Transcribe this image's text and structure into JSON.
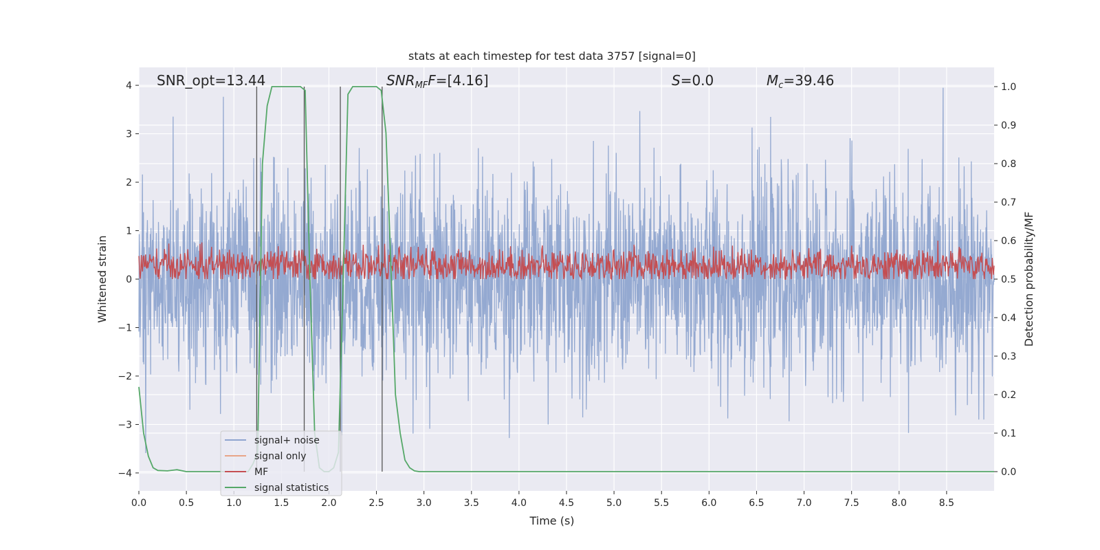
{
  "chart_data": {
    "type": "line",
    "title": "stats at each timestep for test data 3757 [signal=0]",
    "xlabel": "Time (s)",
    "ylabel": "Whitened strain",
    "y2label": "Detection probability/MF",
    "xlim": [
      0.0,
      9.0
    ],
    "ylim": [
      -4.37,
      4.37
    ],
    "y2lim": [
      -0.05,
      1.05
    ],
    "xticks": [
      "0.0",
      "0.5",
      "1.0",
      "1.5",
      "2.0",
      "2.5",
      "3.0",
      "3.5",
      "4.0",
      "4.5",
      "5.0",
      "5.5",
      "6.0",
      "6.5",
      "7.0",
      "7.5",
      "8.0",
      "8.5"
    ],
    "xtick_values": [
      0.0,
      0.5,
      1.0,
      1.5,
      2.0,
      2.5,
      3.0,
      3.5,
      4.0,
      4.5,
      5.0,
      5.5,
      6.0,
      6.5,
      7.0,
      7.5,
      8.0,
      8.5
    ],
    "yticks": [
      "−4",
      "−3",
      "−2",
      "−1",
      "0",
      "1",
      "2",
      "3",
      "4"
    ],
    "ytick_values": [
      -4,
      -3,
      -2,
      -1,
      0,
      1,
      2,
      3,
      4
    ],
    "y2ticks": [
      "0.0",
      "0.1",
      "0.2",
      "0.3",
      "0.4",
      "0.5",
      "0.6",
      "0.7",
      "0.8",
      "0.9",
      "1.0"
    ],
    "y2tick_values": [
      0.0,
      0.1,
      0.2,
      0.3,
      0.4,
      0.5,
      0.6,
      0.7,
      0.8,
      0.9,
      1.0
    ],
    "grid": true,
    "legend_position": "lower-left",
    "annotations": {
      "snr_opt": "SNR_opt=13.44",
      "snr_mf_main": "SNR",
      "snr_mf_sub": "MF",
      "snr_mf_value": "=[4.16]",
      "s_main": "S",
      "s_value": "=0.0",
      "mc_main": "M",
      "mc_sub": "c",
      "mc_value": "=39.46"
    },
    "series": [
      {
        "name": "signal+ noise",
        "color": "#8fa5cf",
        "description_values": "dense noise, amplitude about ±2.5, peaks to ±4"
      },
      {
        "name": "signal only",
        "color": "#e8a487",
        "values": []
      },
      {
        "name": "MF",
        "color": "#c44e52",
        "y_range": [
          0.5,
          0.6
        ]
      },
      {
        "name": "signal statistics",
        "color": "#55a868",
        "x": [
          0.0,
          0.05,
          0.1,
          0.15,
          0.2,
          0.3,
          0.4,
          0.5,
          0.6,
          0.8,
          1.0,
          1.15,
          1.2,
          1.25,
          1.3,
          1.35,
          1.4,
          1.45,
          1.55,
          1.65,
          1.7,
          1.75,
          1.8,
          1.85,
          1.9,
          1.95,
          2.0,
          2.05,
          2.1,
          2.15,
          2.2,
          2.25,
          2.3,
          2.4,
          2.5,
          2.55,
          2.6,
          2.65,
          2.7,
          2.75,
          2.8,
          2.85,
          2.9,
          2.95,
          3.0,
          3.5,
          9.0
        ],
        "y": [
          0.22,
          0.1,
          0.04,
          0.01,
          0.003,
          0.002,
          0.005,
          0.0,
          0.0,
          0.0,
          0.0,
          0.0,
          0.02,
          0.05,
          0.8,
          0.95,
          1.0,
          1.0,
          1.0,
          1.0,
          1.0,
          0.99,
          0.5,
          0.1,
          0.01,
          0.0,
          0.0,
          0.01,
          0.05,
          0.5,
          0.98,
          1.0,
          1.0,
          1.0,
          1.0,
          0.99,
          0.88,
          0.55,
          0.2,
          0.1,
          0.03,
          0.01,
          0.002,
          0.0,
          0.0,
          0.0,
          0.0
        ]
      },
      {
        "name": "threshold markers",
        "color": "#555555",
        "x": [
          1.24,
          1.74,
          2.12,
          2.56
        ]
      }
    ]
  },
  "legend": [
    {
      "label": "signal+ noise",
      "color": "#8fa5cf"
    },
    {
      "label": "signal only",
      "color": "#e8a487"
    },
    {
      "label": "MF",
      "color": "#c44e52"
    },
    {
      "label": "signal statistics",
      "color": "#55a868"
    }
  ]
}
